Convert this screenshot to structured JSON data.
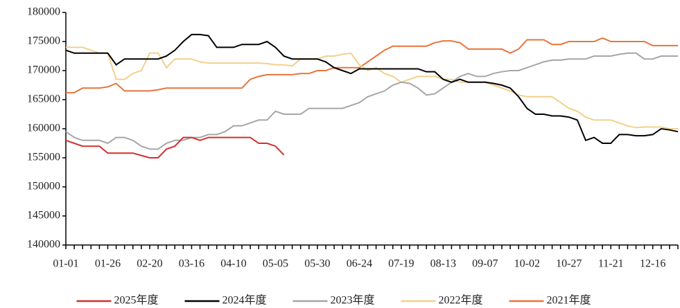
{
  "chart_data": {
    "type": "line",
    "categories": [
      "01-01",
      null,
      null,
      null,
      null,
      "01-26",
      null,
      null,
      null,
      null,
      "02-20",
      null,
      null,
      null,
      null,
      "03-16",
      null,
      null,
      null,
      null,
      "04-10",
      null,
      null,
      null,
      null,
      "05-05",
      null,
      null,
      null,
      null,
      "05-30",
      null,
      null,
      null,
      null,
      "06-24",
      null,
      null,
      null,
      null,
      "07-19",
      null,
      null,
      null,
      null,
      "08-13",
      null,
      null,
      null,
      null,
      "09-07",
      null,
      null,
      null,
      null,
      "10-02",
      null,
      null,
      null,
      null,
      "10-27",
      null,
      null,
      null,
      null,
      "11-21",
      null,
      null,
      null,
      null,
      "12-16",
      null,
      null,
      null
    ],
    "ylim": [
      140000,
      180000
    ],
    "yticks": [
      140000,
      145000,
      150000,
      155000,
      160000,
      165000,
      170000,
      175000,
      180000
    ],
    "grid": false,
    "series": [
      {
        "name": "2025年度",
        "color": "#d32f2f",
        "values": [
          158000,
          157500,
          157000,
          157000,
          157000,
          155800,
          155800,
          155800,
          155800,
          155400,
          155000,
          155000,
          156500,
          157000,
          158500,
          158500,
          158000,
          158500,
          158500,
          158500,
          158500,
          158500,
          158500,
          157500,
          157500,
          157000,
          155500,
          null,
          null,
          null,
          null,
          null,
          null,
          null,
          null,
          null,
          null,
          null,
          null,
          null,
          null,
          null,
          null,
          null,
          null,
          null,
          null,
          null,
          null,
          null,
          null,
          null,
          null,
          null,
          null,
          null,
          null,
          null,
          null,
          null,
          null,
          null,
          null,
          null,
          null,
          null,
          null,
          null,
          null,
          null,
          null,
          null,
          null,
          null
        ]
      },
      {
        "name": "2024年度",
        "color": "#000000",
        "values": [
          173500,
          173000,
          173000,
          173000,
          173000,
          173000,
          171000,
          172000,
          172000,
          172000,
          172000,
          172000,
          172500,
          173500,
          175000,
          176200,
          176200,
          176000,
          174000,
          174000,
          174000,
          174500,
          174500,
          174500,
          175000,
          174000,
          172500,
          172000,
          172000,
          172000,
          172000,
          171500,
          170500,
          170000,
          169500,
          170300,
          170300,
          170300,
          170300,
          170300,
          170300,
          170300,
          170300,
          169800,
          169800,
          168500,
          168000,
          168500,
          168000,
          168000,
          168000,
          167800,
          167500,
          167000,
          165500,
          163500,
          162500,
          162500,
          162200,
          162200,
          162000,
          161500,
          158000,
          158500,
          157500,
          157500,
          159000,
          159000,
          158800,
          158800,
          159000,
          160000,
          159800,
          159500
        ]
      },
      {
        "name": "2023年度",
        "color": "#a6a6a6",
        "values": [
          159500,
          158500,
          158000,
          158000,
          158000,
          157500,
          158500,
          158500,
          158000,
          157000,
          156500,
          156500,
          157500,
          158000,
          158000,
          158500,
          158500,
          159000,
          159000,
          159500,
          160500,
          160500,
          161000,
          161500,
          161500,
          163000,
          162500,
          162500,
          162500,
          163500,
          163500,
          163500,
          163500,
          163500,
          164000,
          164500,
          165500,
          166000,
          166500,
          167500,
          168000,
          167800,
          167000,
          165800,
          166000,
          167000,
          168000,
          169000,
          169500,
          169000,
          169000,
          169500,
          169800,
          170000,
          170000,
          170500,
          171000,
          171500,
          171800,
          171800,
          172000,
          172000,
          172000,
          172500,
          172500,
          172500,
          172800,
          173000,
          173000,
          172000,
          172000,
          172500,
          172500,
          172500
        ]
      },
      {
        "name": "2022年度",
        "color": "#f2d08c",
        "values": [
          174000,
          174000,
          174000,
          173500,
          173000,
          173000,
          168500,
          168500,
          169500,
          170000,
          173000,
          173000,
          170500,
          172000,
          172000,
          172000,
          171500,
          171300,
          171300,
          171300,
          171300,
          171300,
          171300,
          171300,
          171200,
          171000,
          171000,
          170800,
          172000,
          172000,
          172000,
          172500,
          172500,
          172800,
          173000,
          171000,
          170000,
          170500,
          169500,
          169000,
          168000,
          168500,
          169000,
          169000,
          169000,
          168500,
          168500,
          168000,
          168000,
          168000,
          168000,
          167500,
          167000,
          166500,
          165800,
          165500,
          165500,
          165500,
          165500,
          164500,
          163500,
          163000,
          162000,
          161500,
          161500,
          161500,
          161000,
          160500,
          160200,
          160300,
          160300,
          160300,
          160000,
          160000
        ]
      },
      {
        "name": "2021年度",
        "color": "#e8743b",
        "values": [
          166200,
          166200,
          167000,
          167000,
          167000,
          167200,
          167800,
          166500,
          166500,
          166500,
          166500,
          166700,
          167000,
          167000,
          167000,
          167000,
          167000,
          167000,
          167000,
          167000,
          167000,
          167000,
          168500,
          169000,
          169300,
          169300,
          169300,
          169300,
          169500,
          169500,
          170000,
          170000,
          170500,
          170500,
          170500,
          170500,
          171500,
          172500,
          173500,
          174200,
          174200,
          174200,
          174200,
          174200,
          174800,
          175100,
          175100,
          174800,
          173700,
          173700,
          173700,
          173700,
          173700,
          173000,
          173700,
          175300,
          175300,
          175300,
          174500,
          174500,
          175000,
          175000,
          175000,
          175000,
          175600,
          175000,
          175000,
          175000,
          175000,
          175000,
          174300,
          174300,
          174300,
          174300
        ]
      }
    ]
  }
}
